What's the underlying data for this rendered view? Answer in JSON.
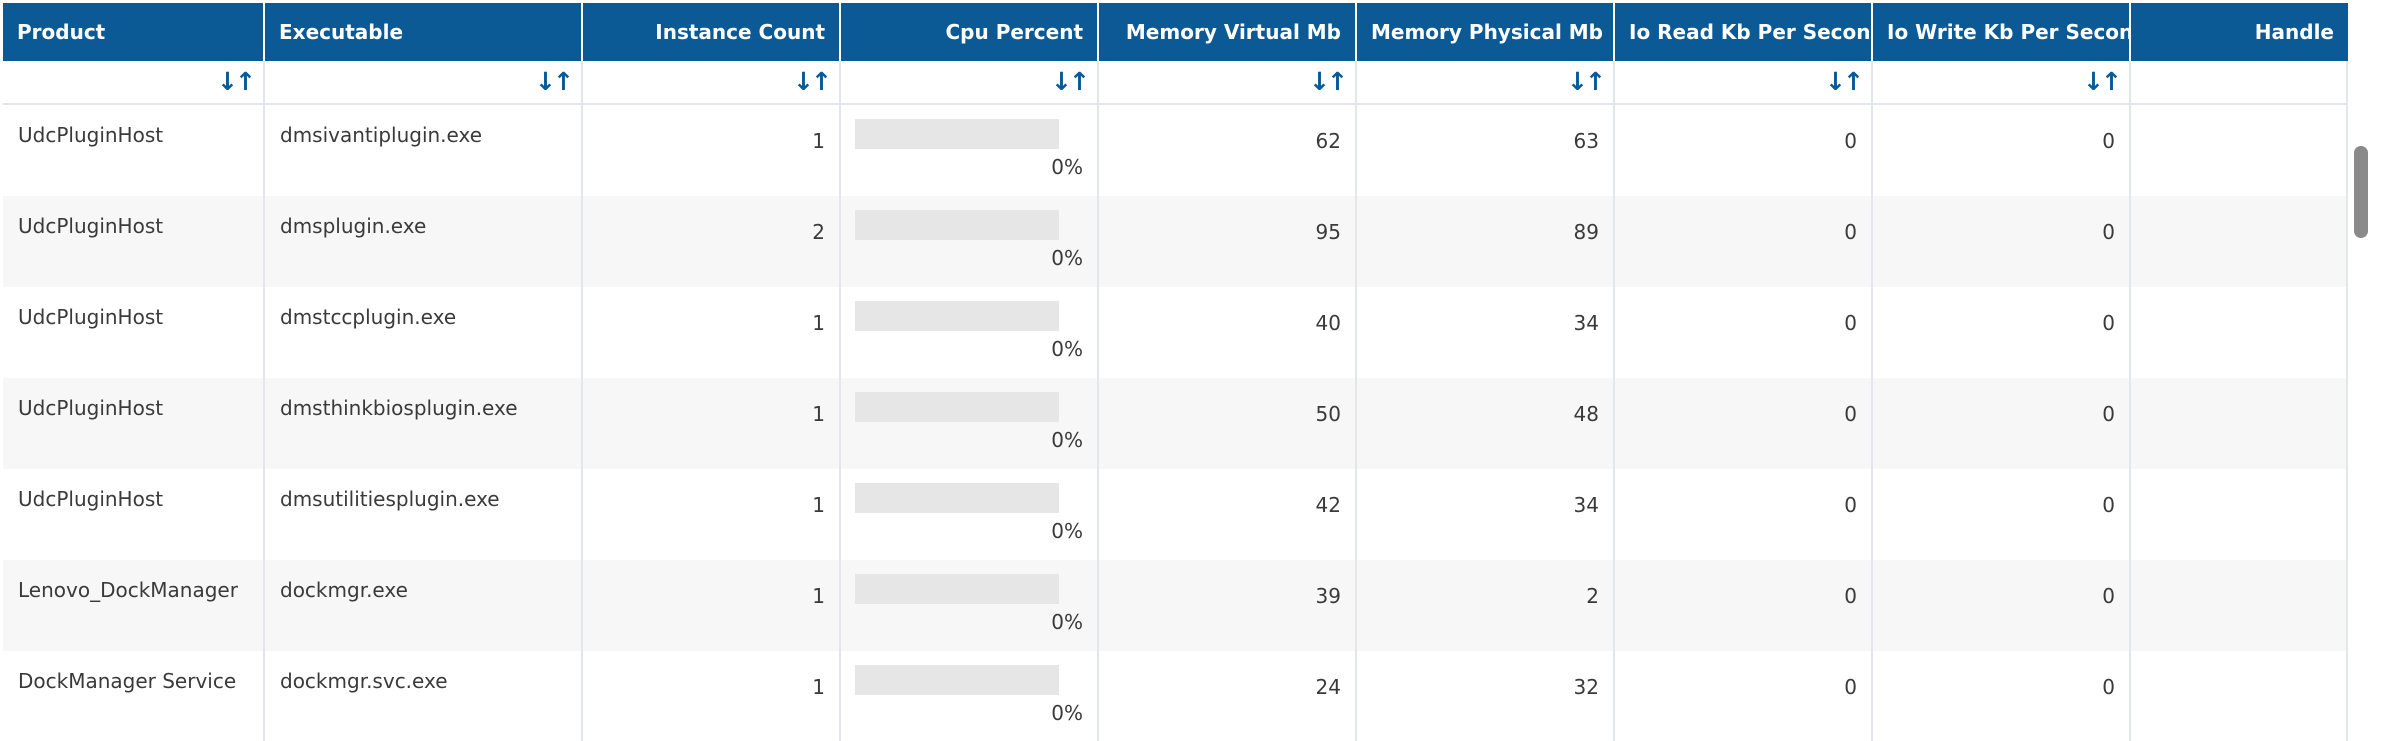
{
  "columns": [
    {
      "key": "product",
      "label": "Product"
    },
    {
      "key": "executable",
      "label": "Executable"
    },
    {
      "key": "instance_count",
      "label": "Instance Count"
    },
    {
      "key": "cpu_percent",
      "label": "Cpu Percent"
    },
    {
      "key": "memory_virtual_mb",
      "label": "Memory Virtual Mb"
    },
    {
      "key": "memory_physical_mb",
      "label": "Memory Physical Mb"
    },
    {
      "key": "io_read_kb_per_second",
      "label": "Io Read Kb Per Second"
    },
    {
      "key": "io_write_kb_per_second",
      "label": "Io Write Kb Per Second"
    },
    {
      "key": "handle",
      "label": "Handle"
    }
  ],
  "sort_icon": {
    "name": "sort-arrows-icon",
    "glyph": "↓↑"
  },
  "rows": [
    {
      "product": "UdcPluginHost",
      "executable": "dmsivantiplugin.exe",
      "instance_count": "1",
      "cpu_percent": "0%",
      "cpu_fraction": 0,
      "memory_virtual_mb": "62",
      "memory_physical_mb": "63",
      "io_read_kb_per_second": "0",
      "io_write_kb_per_second": "0",
      "handle": ""
    },
    {
      "product": "UdcPluginHost",
      "executable": "dmsplugin.exe",
      "instance_count": "2",
      "cpu_percent": "0%",
      "cpu_fraction": 0,
      "memory_virtual_mb": "95",
      "memory_physical_mb": "89",
      "io_read_kb_per_second": "0",
      "io_write_kb_per_second": "0",
      "handle": ""
    },
    {
      "product": "UdcPluginHost",
      "executable": "dmstccplugin.exe",
      "instance_count": "1",
      "cpu_percent": "0%",
      "cpu_fraction": 0,
      "memory_virtual_mb": "40",
      "memory_physical_mb": "34",
      "io_read_kb_per_second": "0",
      "io_write_kb_per_second": "0",
      "handle": ""
    },
    {
      "product": "UdcPluginHost",
      "executable": "dmsthinkbiosplugin.exe",
      "instance_count": "1",
      "cpu_percent": "0%",
      "cpu_fraction": 0,
      "memory_virtual_mb": "50",
      "memory_physical_mb": "48",
      "io_read_kb_per_second": "0",
      "io_write_kb_per_second": "0",
      "handle": ""
    },
    {
      "product": "UdcPluginHost",
      "executable": "dmsutilitiesplugin.exe",
      "instance_count": "1",
      "cpu_percent": "0%",
      "cpu_fraction": 0,
      "memory_virtual_mb": "42",
      "memory_physical_mb": "34",
      "io_read_kb_per_second": "0",
      "io_write_kb_per_second": "0",
      "handle": ""
    },
    {
      "product": "Lenovo_DockManager",
      "executable": "dockmgr.exe",
      "instance_count": "1",
      "cpu_percent": "0%",
      "cpu_fraction": 0,
      "memory_virtual_mb": "39",
      "memory_physical_mb": "2",
      "io_read_kb_per_second": "0",
      "io_write_kb_per_second": "0",
      "handle": ""
    },
    {
      "product": "DockManager Service",
      "executable": "dockmgr.svc.exe",
      "instance_count": "1",
      "cpu_percent": "0%",
      "cpu_fraction": 0,
      "memory_virtual_mb": "24",
      "memory_physical_mb": "32",
      "io_read_kb_per_second": "0",
      "io_write_kb_per_second": "0",
      "handle": ""
    }
  ],
  "colors": {
    "header_bg": "#0b5a96",
    "sort_icon": "#0b5a96",
    "bar_track": "#e6e6e6"
  }
}
